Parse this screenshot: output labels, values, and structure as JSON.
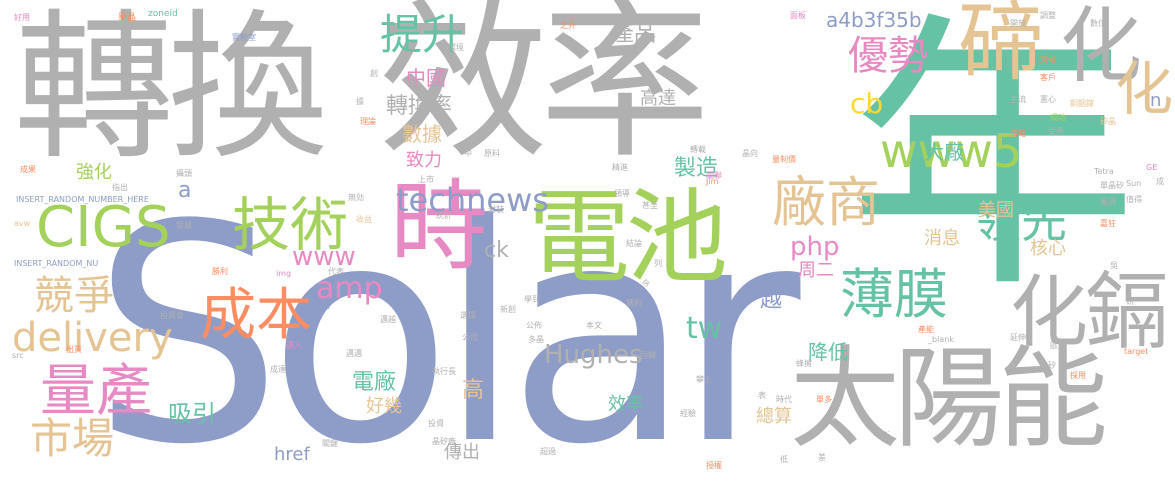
{
  "colors": {
    "gray": "#b0b0b0",
    "slate": "#8e9cc8",
    "green": "#a4d15c",
    "teal": "#66c2a5",
    "tan": "#e5c494",
    "pink": "#e78ac3",
    "orange": "#fc8d62",
    "yellow": "#ffd92f"
  },
  "words": {
    "w_solar": "Solar",
    "w_nian": "年",
    "w_zhuanhuan": "轉換",
    "w_xiaolv": "效率",
    "w_dianchi": "電池",
    "w_taiyangneng": "太陽能",
    "w_shi": "時",
    "w_di": "碲",
    "w_hua1": "化",
    "w_hua2": "化",
    "w_ge": "鎘",
    "w_cigs": "CIGS",
    "w_jishu": "技術",
    "w_tisheng": "提升",
    "w_youshi": "優勢",
    "w_www5": "www5",
    "w_changshang": "廠商",
    "w_lingxian": "領先",
    "w_boomo": "薄膜",
    "w_chengben": "成本",
    "w_liangchan": "量產",
    "w_jingzheng": "競爭",
    "w_shichang": "市場",
    "w_delivery": "delivery",
    "w_www": "www",
    "w_amp": "amp",
    "w_technews": "technews",
    "w_hughes": "Hughes",
    "w_php": "php",
    "w_tw": "tw",
    "w_ck": "ck",
    "w_cb": "cb",
    "w_hash": "a4b3f35b",
    "w_chanpin": "產品",
    "w_zhongguo": "中國",
    "w_zhuanhuanlv": "轉換率",
    "w_shuju": "數據",
    "w_zhili": "致力",
    "w_zhizao": "製造",
    "w_gaoda": "高達",
    "w_dachang": "大廠",
    "w_xiaoxi": "消息",
    "w_meiguo": "美國",
    "w_hexin": "核心",
    "w_zhouer": "周二",
    "w_jiangdi": "降低",
    "w_yue": "越",
    "w_qianghua": "強化",
    "w_a": "a",
    "w_dianchang": "電廠",
    "w_haoji": "好幾",
    "w_xiyin": "吸引",
    "w_gao": "高",
    "w_xiaolv2": "效率",
    "w_chuanchu": "傳出",
    "w_zongsuan": "總算",
    "w_href": "href",
    "w_n": "n",
    "w_haoyong": "好用",
    "w_danpin": "單晶",
    "w_zoneid": "zoneid",
    "w_shiyanshi": "實驗室",
    "w_huanjing": "環境",
    "w_ru": "入",
    "w_zhiwai": "之外",
    "w_mianban": "面板",
    "w_kaifang": "開放",
    "w_tiaozheng": "調整",
    "w_shuwei": "數位",
    "w_tupo": "突破",
    "w_kehu": "客戶",
    "w_zhuliu": "主流",
    "w_jiaoxin": "憲心",
    "w_tonglieen": "銅銦鎵",
    "w_chenggong": "成功",
    "w_guijing": "矽晶",
    "w_celue": "策略",
    "w_shouxian": "受限",
    "w_chuang": "創",
    "w_ju": "據",
    "w_lijie": "理論",
    "w_qian": "前",
    "w_zhong": "中",
    "w_chengguo": "成果",
    "w_zhichu": "指出",
    "w_lv1": "攝頭",
    "w_insert1": "INSERT_RANDOM_NUMBER_HERE",
    "w_insert2": "INSERT_RANDOM_NU",
    "w_avw": "avw",
    "w_fazhan": "發展",
    "w_wuxiao": "無効",
    "w_shouyi": "收益",
    "w_shengli": "勝利",
    "w_img": "img",
    "w_daibiao": "代表",
    "w_bing": "併購",
    "w_touzihui": "投資會",
    "w_chuhuo": "出貨",
    "w_src": "src",
    "w_guoru": "邁入",
    "w_chengda": "成達",
    "w_xiaoya": "邁邁",
    "w_zhixingzhang": "執行長",
    "w_touzi": "投資",
    "w_jingguichang": "晶矽廠",
    "w_guanjian": "關鍵",
    "w_xiemo": "邁越",
    "w_xinchuang": "新創",
    "w_gongsi": "公司",
    "w_gonggao": "公佈",
    "w_duojing": "多晶",
    "w_zhan": "選擇",
    "w_xuedao": "學到",
    "w_benwen": "本文",
    "w_huigui": "回歸",
    "w_panshang": "攀上",
    "w_biao": "表",
    "w_shidai": "時代",
    "w_jingyan": "經驗",
    "w_shouquan": "授權",
    "w_di2": "低",
    "w_cha": "差",
    "w_jingzhi": "精進",
    "w_shangshi": "上市",
    "w_fengzhuang": "封裝",
    "w_yuanliao": "原料",
    "w_tongji": "統計",
    "w_linghang": "領導",
    "w_shenzhi": "甚至",
    "w_jielun": "結論",
    "w_lie": "列",
    "w_jin": "今",
    "w_huoyun": "獲利",
    "w_guanli": "關聯",
    "w_jingxiang": "晶向",
    "w_jim": "Jim",
    "w_zhuanzai": "轉載",
    "w_liangzhi": "量制價",
    "w_tetra": "Tetra",
    "w_danjingsi": "單晶矽",
    "w_sun": "Sun",
    "w_ge2": "GE",
    "w_cheng": "成",
    "w_qinhe": "值得",
    "w_weiwu": "屋頂",
    "w_gao2": "嘉狂",
    "w_wu": "吳",
    "w_yan": "研",
    "w_blank": "_blank",
    "w_chanling": "產能",
    "w_yanshen": "延伸",
    "w_oumeng": "歐盟",
    "w_jingli": "晶矽",
    "w_caiyong": "採用",
    "w_target": "target",
    "w_fengji": "蜂擁",
    "w_huadou": "單多",
    "w_pingheng": "平衡",
    "w_chaoyue": "超過"
  }
}
